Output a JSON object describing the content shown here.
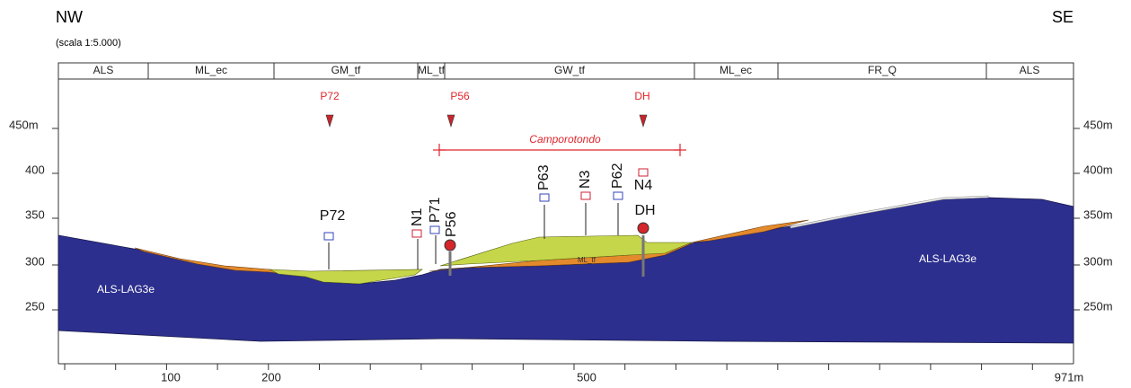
{
  "header": {
    "left": "NW",
    "right": "SE",
    "scale": "(scala 1:5.000)"
  },
  "units": [
    "ALS",
    "ML_ec",
    "GM_tf",
    "ML_tf",
    "GW_tf",
    "ML_ec",
    "FR_Q",
    "ALS"
  ],
  "left_axis": [
    "450m",
    "400",
    "350",
    "300",
    "250"
  ],
  "right_axis": [
    "450m",
    "400m",
    "350m",
    "300m",
    "250m"
  ],
  "bottom_axis": [
    "100",
    "200",
    "500",
    "971m"
  ],
  "sites": [
    "P72",
    "P56",
    "DH"
  ],
  "section_label": "Camporotondo",
  "boreholes": [
    "P72",
    "N1",
    "P71",
    "P56",
    "P63",
    "N3",
    "P62",
    "N4",
    "DH"
  ],
  "formation_labels": [
    "ALS-LAG3e",
    "ML_tf",
    "ALS-LAG3e"
  ]
}
